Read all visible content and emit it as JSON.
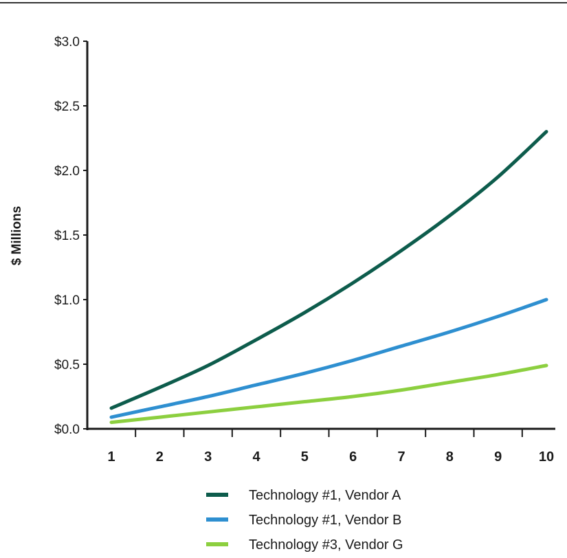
{
  "chart_data": {
    "type": "line",
    "title": "",
    "xlabel": "",
    "ylabel": "$ Millions",
    "x": [
      1,
      2,
      3,
      4,
      5,
      6,
      7,
      8,
      9,
      10
    ],
    "x_tick_labels": [
      "1",
      "2",
      "3",
      "4",
      "5",
      "6",
      "7",
      "8",
      "9",
      "10"
    ],
    "y_ticks": [
      0.0,
      0.5,
      1.0,
      1.5,
      2.0,
      2.5,
      3.0
    ],
    "y_tick_labels": [
      "$0.0",
      "$0.5",
      "$1.0",
      "$1.5",
      "$2.0",
      "$2.5",
      "$3.0"
    ],
    "ylim": [
      0,
      3.0
    ],
    "grid": false,
    "legend_position": "bottom",
    "series": [
      {
        "name": "Technology #1, Vendor A",
        "color": "#0d5c4c",
        "values": [
          0.16,
          0.32,
          0.49,
          0.69,
          0.9,
          1.13,
          1.38,
          1.65,
          1.95,
          2.3
        ]
      },
      {
        "name": "Technology #1, Vendor B",
        "color": "#2e8fd0",
        "values": [
          0.09,
          0.17,
          0.25,
          0.34,
          0.43,
          0.53,
          0.64,
          0.75,
          0.87,
          1.0
        ]
      },
      {
        "name": "Technology #3, Vendor G",
        "color": "#8ccf3f",
        "values": [
          0.05,
          0.09,
          0.13,
          0.17,
          0.21,
          0.25,
          0.3,
          0.36,
          0.42,
          0.49
        ]
      }
    ]
  }
}
